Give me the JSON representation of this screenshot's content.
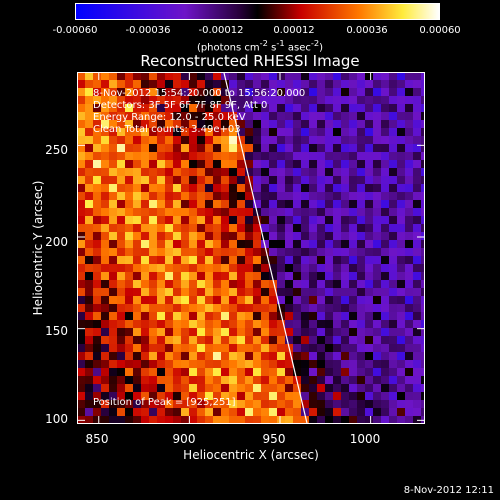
{
  "chart_data": {
    "type": "heatmap",
    "title": "Reconstructed RHESSI Image",
    "xlabel": "Heliocentric X (arcsec)",
    "ylabel": "Heliocentric Y (arcsec)",
    "xlim": [
      838,
      1030
    ],
    "ylim": [
      98,
      290
    ],
    "xticks": [
      "850",
      "900",
      "950",
      "1000"
    ],
    "yticks": [
      "100",
      "150",
      "200",
      "250"
    ],
    "colorbar": {
      "ticks": [
        "-0.00060",
        "-0.00036",
        "-0.00012",
        "0.00012",
        "0.00036",
        "0.00060"
      ],
      "range": [
        -0.0006,
        0.0006
      ],
      "unit_prefix": "(photons cm",
      "unit_exp1": "-2",
      "unit_mid": " s",
      "unit_exp2": "-1",
      "unit_mid2": " asec",
      "unit_exp3": "-2",
      "unit_suffix": ")"
    },
    "annotations": {
      "time": "8-Nov-2012 15:54:20.000 to 15:56:20.000",
      "detectors": "Detectors: 3F 5F 6F 7F 8F 9F, Att 0",
      "energy": "Energy Range: 12.0 - 25.0 keV",
      "clean": "Clean     Total counts: 3.49e+03",
      "peak": "Position of Peak = [925,251]"
    },
    "peak": {
      "x": 925,
      "y": 251
    },
    "limb": [
      [
        919,
        290
      ],
      [
        965,
        98
      ]
    ],
    "grid": false
  },
  "footer": "8-Nov-2012 12:11"
}
